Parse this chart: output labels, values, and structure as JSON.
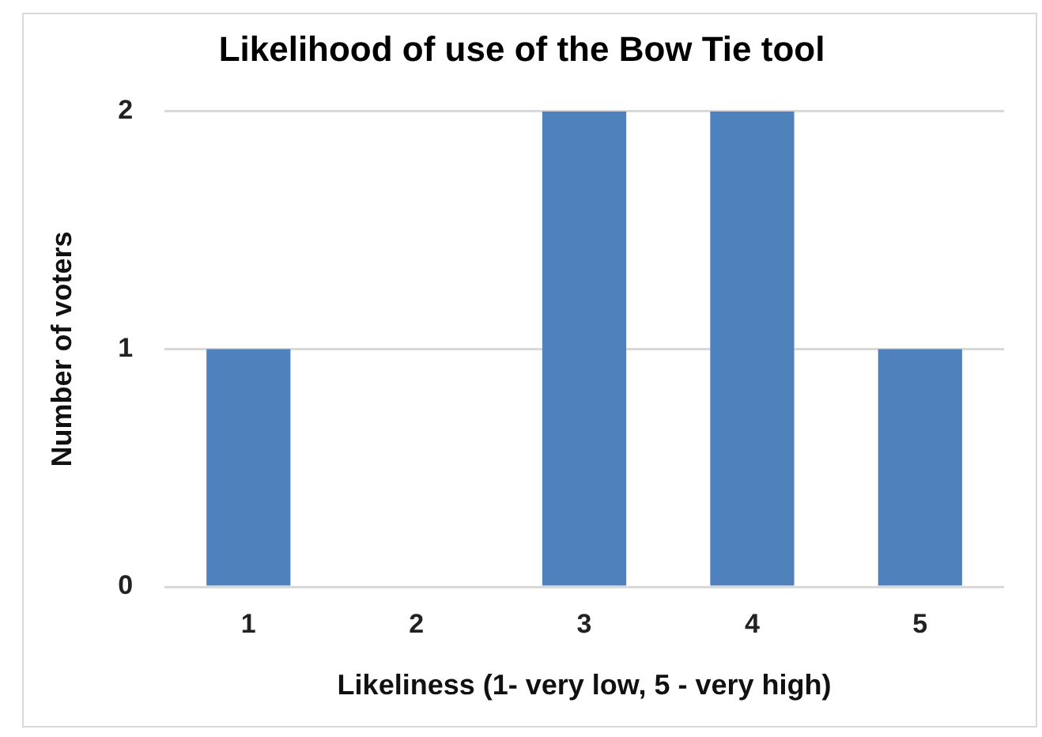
{
  "chart_data": {
    "type": "bar",
    "title": "Likelihood of use of the Bow Tie tool",
    "xlabel": "Likeliness (1- very low, 5 - very high)",
    "ylabel": "Number of voters",
    "categories": [
      "1",
      "2",
      "3",
      "4",
      "5"
    ],
    "values": [
      1,
      0,
      2,
      2,
      1
    ],
    "color": "#4f81bd",
    "ylim": [
      0,
      2
    ],
    "yticks": [
      0,
      1,
      2
    ],
    "grid": "y",
    "legend": false
  }
}
